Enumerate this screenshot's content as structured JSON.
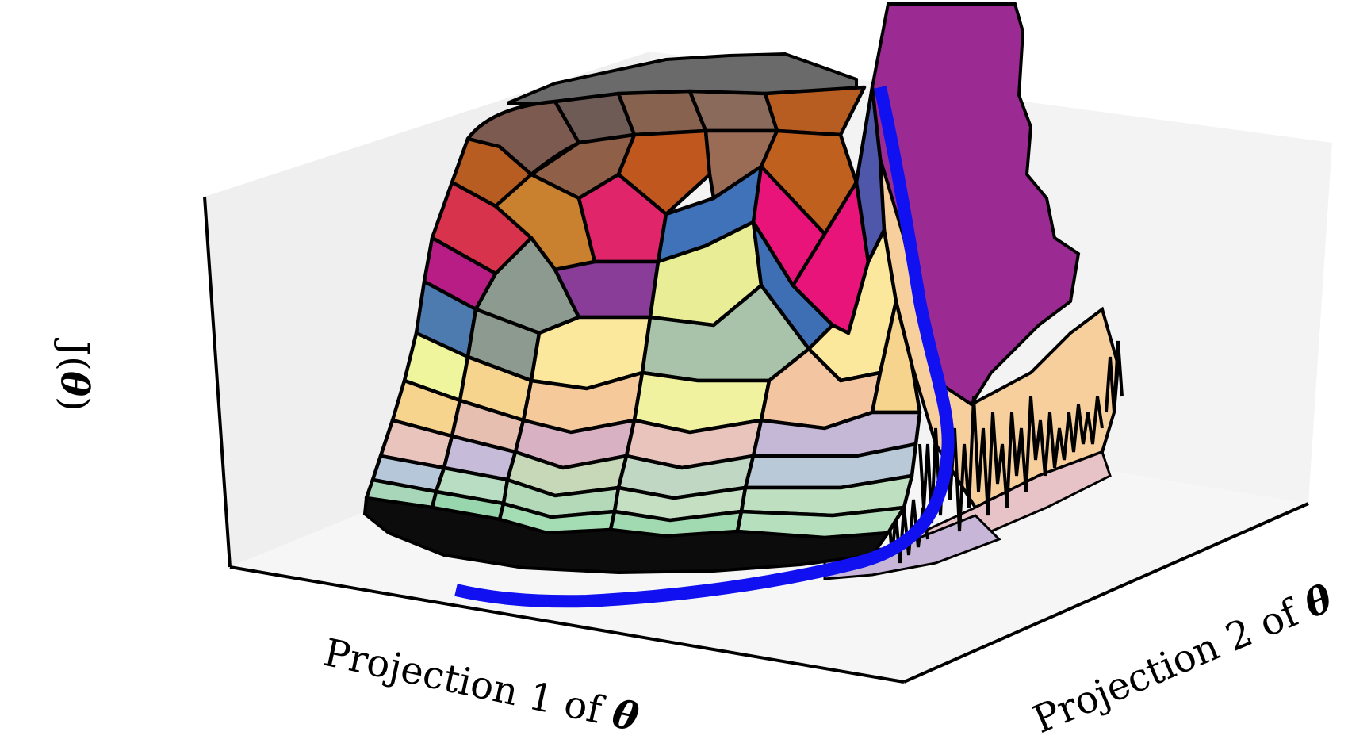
{
  "figure": {
    "x_axis_label": {
      "text": "Projection 1 of ",
      "symbol": "θ"
    },
    "y_axis_label": {
      "text": "Projection 2 of ",
      "symbol": "θ"
    },
    "z_axis_label": {
      "text": "J(",
      "symbol": "θ",
      "suffix": ")"
    }
  },
  "colors": {
    "pane": "#efefef",
    "pane_edge": "#000000",
    "grid_line": "#000000",
    "path": "#1010f0",
    "purple_surface": "#9b2a93",
    "peach_surface": "#f7cf9d",
    "pink_surface": "#e7c2c6"
  }
}
